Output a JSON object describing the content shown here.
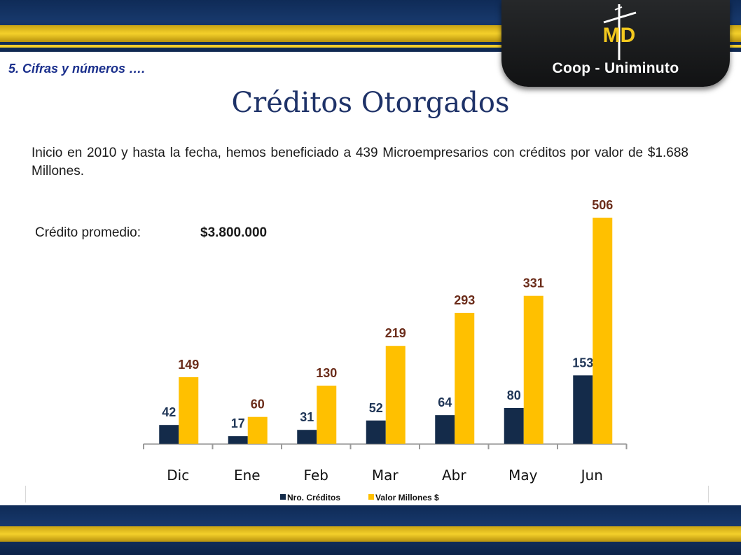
{
  "header": {
    "logo_text": "Coop - Uniminuto",
    "logo_letters": "MD"
  },
  "section_label": "5. Cifras y números ….",
  "title": "Créditos Otorgados",
  "intro": "Inicio en 2010 y hasta la fecha, hemos beneficiado a 439 Microempresarios con créditos por valor de $1.688 Millones.",
  "average": {
    "label": "Crédito promedio:",
    "value": "$3.800.000"
  },
  "colors": {
    "series_navy": "#142b4a",
    "series_gold": "#ffc000",
    "label_navy": "#1f3556",
    "label_brown": "#6b2c1a"
  },
  "chart_data": {
    "type": "bar",
    "categories": [
      "Dic",
      "Ene",
      "Feb",
      "Mar",
      "Abr",
      "May",
      "Jun"
    ],
    "series": [
      {
        "name": "Nro. Créditos",
        "values": [
          42,
          17,
          31,
          52,
          64,
          80,
          153
        ]
      },
      {
        "name": "Valor Millones $",
        "values": [
          149,
          60,
          130,
          219,
          293,
          331,
          506
        ]
      }
    ],
    "data_labels": true,
    "legend": "bottom-center",
    "grid": false,
    "ylim": [
      0,
      506
    ]
  }
}
